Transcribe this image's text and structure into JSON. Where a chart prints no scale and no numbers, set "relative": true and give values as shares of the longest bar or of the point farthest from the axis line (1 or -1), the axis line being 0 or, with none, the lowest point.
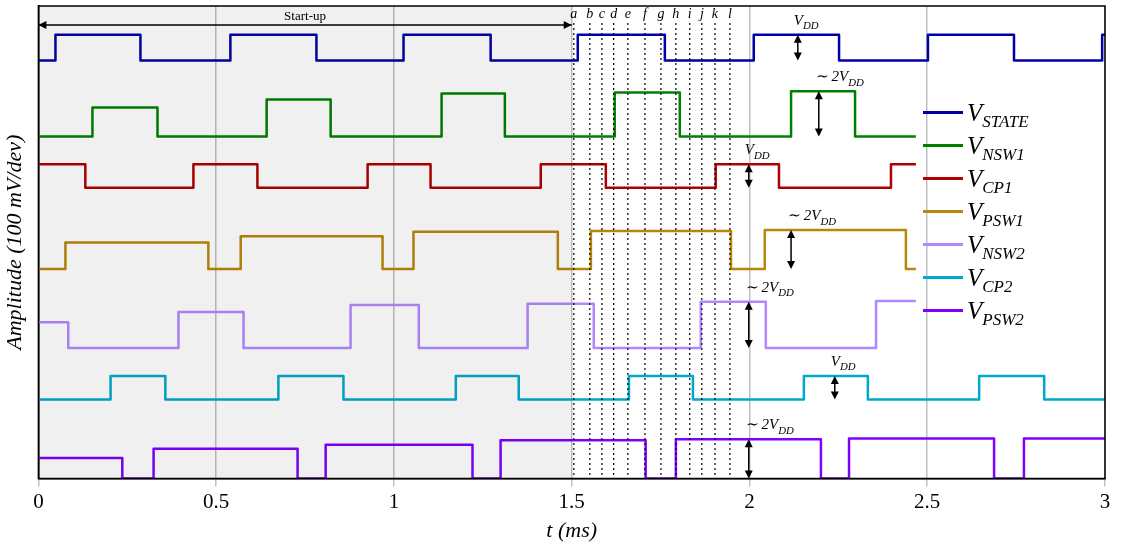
{
  "chart_data": {
    "type": "step",
    "relative": true,
    "xlabel": "t (ms)",
    "ylabel": "Amplitude (100 mV/dev)",
    "xlim": [
      0,
      3
    ],
    "xticks": [
      0,
      0.5,
      1,
      1.5,
      2,
      2.5,
      3
    ],
    "grid": "x",
    "legend": "right",
    "line_style": "solid",
    "series": [
      {
        "name": "V$_{STATE}$",
        "color": "#0000a8",
        "x": [
          0,
          0.048,
          0.287,
          0.54,
          0.782,
          1.027,
          1.272,
          1.517,
          1.762,
          2.012,
          2.252,
          2.502,
          2.744,
          2.992,
          3
        ],
        "values": [
          0.942,
          1,
          0.942,
          1,
          0.942,
          1,
          0.942,
          1,
          0.942,
          1,
          0.942,
          1,
          0.942,
          1,
          1
        ]
      },
      {
        "name": "V$_{NSW1}$",
        "color": "#008000",
        "x": [
          0,
          0.152,
          0.335,
          0.642,
          0.822,
          1.134,
          1.312,
          1.621,
          1.804,
          2.117,
          2.297,
          2.468
        ],
        "values": [
          0.771,
          0.836,
          0.771,
          0.854,
          0.771,
          0.868,
          0.771,
          0.87,
          0.771,
          0.873,
          0.771,
          0.771
        ]
      },
      {
        "name": "V$_{CP1}$",
        "color": "#b00000",
        "x": [
          0,
          0.132,
          0.436,
          0.616,
          0.926,
          1.103,
          1.413,
          1.596,
          1.905,
          2.083,
          2.398,
          2.468
        ],
        "values": [
          0.708,
          0.655,
          0.708,
          0.655,
          0.708,
          0.655,
          0.708,
          0.655,
          0.708,
          0.655,
          0.708,
          0.708
        ]
      },
      {
        "name": "V$_{PSW1}$",
        "color": "#b8860b",
        "x": [
          0,
          0.076,
          0.478,
          0.569,
          0.968,
          1.055,
          1.461,
          1.554,
          1.948,
          2.043,
          2.44,
          2.468
        ],
        "values": [
          0.472,
          0.532,
          0.472,
          0.546,
          0.472,
          0.556,
          0.472,
          0.558,
          0.472,
          0.56,
          0.472,
          0.472
        ]
      },
      {
        "name": "V$_{NSW2}$",
        "color": "#b388ff",
        "x": [
          0,
          0.084,
          0.394,
          0.577,
          0.878,
          1.07,
          1.376,
          1.562,
          1.863,
          2.046,
          2.356,
          2.468
        ],
        "values": [
          0.352,
          0.294,
          0.375,
          0.294,
          0.391,
          0.294,
          0.394,
          0.294,
          0.398,
          0.294,
          0.4,
          0.4
        ]
      },
      {
        "name": "V$_{CP2}$",
        "color": "#00a8cc",
        "x": [
          0,
          0.203,
          0.357,
          0.675,
          0.858,
          1.174,
          1.351,
          1.661,
          1.841,
          2.153,
          2.333,
          2.646,
          2.829,
          3
        ],
        "values": [
          0.178,
          0.231,
          0.178,
          0.231,
          0.178,
          0.231,
          0.178,
          0.231,
          0.178,
          0.231,
          0.178,
          0.231,
          0.178,
          0.178
        ]
      },
      {
        "name": "V$_{PSW2}$",
        "color": "#8000ff",
        "x": [
          0,
          0.236,
          0.324,
          0.729,
          0.808,
          1.221,
          1.3,
          1.708,
          1.793,
          2.201,
          2.28,
          2.688,
          2.772,
          3
        ],
        "values": [
          0.046,
          0,
          0.067,
          0,
          0.076,
          0,
          0.086,
          0,
          0.088,
          0,
          0.09,
          0,
          0.09,
          0.09
        ]
      }
    ],
    "bands": [
      {
        "axis": "x",
        "from": 0,
        "to": 1.5,
        "label": "Start-up"
      }
    ],
    "ref_lines": [
      {
        "axis": "x",
        "value": 1.506,
        "label": "a",
        "line_style": "dotted"
      },
      {
        "axis": "x",
        "value": 1.551,
        "label": "b",
        "line_style": "dotted"
      },
      {
        "axis": "x",
        "value": 1.585,
        "label": "c",
        "line_style": "dotted"
      },
      {
        "axis": "x",
        "value": 1.618,
        "label": "d",
        "line_style": "dotted"
      },
      {
        "axis": "x",
        "value": 1.658,
        "label": "e",
        "line_style": "dotted"
      },
      {
        "axis": "x",
        "value": 1.706,
        "label": "f",
        "line_style": "dotted"
      },
      {
        "axis": "x",
        "value": 1.751,
        "label": "g",
        "line_style": "dotted"
      },
      {
        "axis": "x",
        "value": 1.793,
        "label": "h",
        "line_style": "dotted"
      },
      {
        "axis": "x",
        "value": 1.832,
        "label": "i",
        "line_style": "dotted"
      },
      {
        "axis": "x",
        "value": 1.866,
        "label": "j",
        "line_style": "dotted"
      },
      {
        "axis": "x",
        "value": 1.903,
        "label": "k",
        "line_style": "dotted"
      },
      {
        "axis": "x",
        "value": 1.945,
        "label": "l",
        "line_style": "dotted"
      }
    ],
    "annotations": [
      {
        "text": "V$_{DD}$",
        "x": 2.136,
        "y": 1
      },
      {
        "text": "∼ 2V$_{DD}$",
        "x": 2.195,
        "y": 0.873
      },
      {
        "text": "V$_{DD}$",
        "x": 1.998,
        "y": 0.708
      },
      {
        "text": "∼ 2V$_{DD}$",
        "x": 2.117,
        "y": 0.56
      },
      {
        "text": "∼ 2V$_{DD}$",
        "x": 1.998,
        "y": 0.398
      },
      {
        "text": "V$_{DD}$",
        "x": 2.24,
        "y": 0.231
      },
      {
        "text": "∼ 2V$_{DD}$",
        "x": 1.998,
        "y": 0.088
      }
    ]
  }
}
